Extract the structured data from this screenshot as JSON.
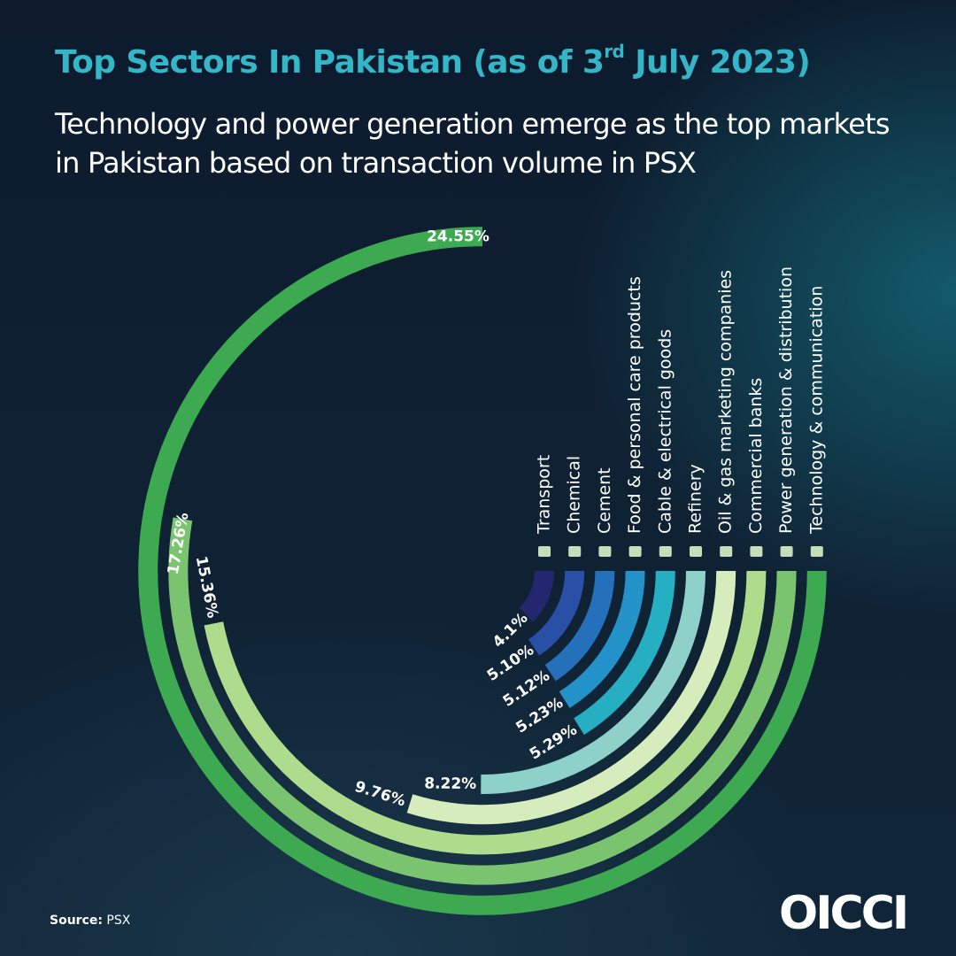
{
  "title_main": "Top Sectors In Pakistan (as of 3",
  "title_sup": "rd",
  "title_end": " July 2023)",
  "subtitle": "Technology and power generation emerge as the top markets in Pakistan based on transaction volume in PSX",
  "source_label": "Source:",
  "source_value": " PSX",
  "logo_text": "OICCI",
  "chart_data": {
    "type": "radial-bar",
    "categories": [
      "Transport",
      "Chemical",
      "Cement",
      "Food & personal care products",
      "Cable & electrical goods",
      "Refinery",
      "Oil & gas marketing companies",
      "Commercial banks",
      "Power generation & distribution",
      "Technology & communication"
    ],
    "values": [
      4.1,
      5.1,
      5.12,
      5.23,
      5.29,
      8.22,
      9.76,
      15.36,
      17.26,
      24.55
    ],
    "value_labels": [
      "4.1%",
      "5.10%",
      "5.12%",
      "5.23%",
      "5.29%",
      "8.22%",
      "9.76%",
      "15.36%",
      "17.26%",
      "24.55%"
    ],
    "icons": [
      "truck-icon",
      "flask-icon",
      "cement-bag-icon",
      "fork-knife-icon",
      "plug-icon",
      "refinery-icon",
      "oil-drop-icon",
      "bank-icon",
      "lightning-icon",
      "gear-icon"
    ],
    "colors": [
      "#25276e",
      "#2a4fa6",
      "#2470ba",
      "#2392c8",
      "#26afc3",
      "#8ed1c8",
      "#d6ecbc",
      "#addd8c",
      "#7ac36f",
      "#3daa52"
    ]
  }
}
